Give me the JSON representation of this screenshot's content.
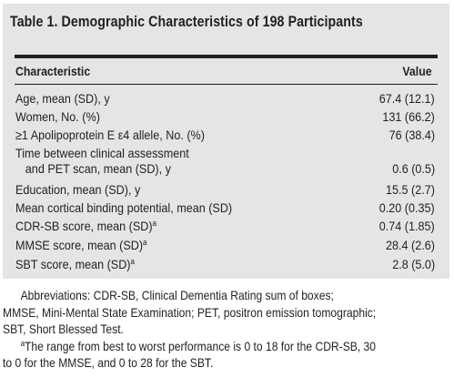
{
  "table": {
    "title": "Table 1. Demographic Characteristics of 198 Participants",
    "headers": {
      "characteristic": "Characteristic",
      "value": "Value"
    },
    "rows": [
      {
        "label": "Age, mean (SD), y",
        "label_cont": "",
        "sup": "",
        "value": "67.4 (12.1)"
      },
      {
        "label": "Women, No. (%)",
        "label_cont": "",
        "sup": "",
        "value": "131 (66.2)"
      },
      {
        "label": "≥1 Apolipoprotein E ε4 allele, No. (%)",
        "label_cont": "",
        "sup": "",
        "value": "76 (38.4)"
      },
      {
        "label": "Time between clinical assessment",
        "label_cont": "and PET scan, mean (SD), y",
        "sup": "",
        "value": "0.6 (0.5)"
      },
      {
        "label": "Education, mean (SD), y",
        "label_cont": "",
        "sup": "",
        "value": "15.5 (2.7)"
      },
      {
        "label": "Mean cortical binding potential, mean (SD)",
        "label_cont": "",
        "sup": "",
        "value": "0.20 (0.35)"
      },
      {
        "label": "CDR-SB score, mean (SD)",
        "label_cont": "",
        "sup": "a",
        "value": "0.74 (1.85)"
      },
      {
        "label": "MMSE score, mean (SD)",
        "label_cont": "",
        "sup": "a",
        "value": "28.4 (2.6)"
      },
      {
        "label": "SBT score, mean (SD)",
        "label_cont": "",
        "sup": "a",
        "value": "2.8 (5.0)"
      }
    ]
  },
  "notes": {
    "abbreviations_lines": [
      "Abbreviations: CDR-SB, Clinical Dementia Rating sum of boxes;",
      "MMSE, Mini-Mental State Examination; PET, positron emission tomographic;",
      "SBT, Short Blessed Test."
    ],
    "footnote_mark": "a",
    "footnote_lines": [
      "The range from best to worst performance is 0 to 18 for the CDR-SB, 30",
      "to 0 for the MMSE, and 0 to 28 for the SBT."
    ]
  }
}
